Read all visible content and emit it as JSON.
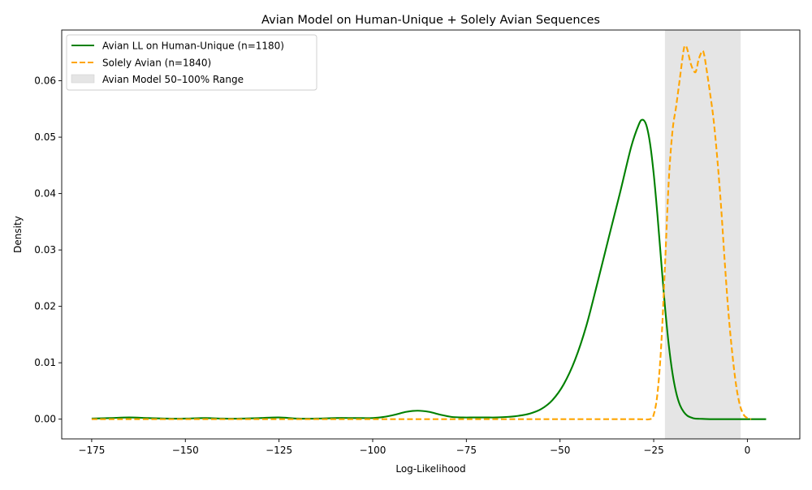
{
  "chart_data": {
    "type": "line",
    "title": "Avian Model on Human-Unique + Solely Avian Sequences",
    "xlabel": "Log-Likelihood",
    "ylabel": "Density",
    "xlim": [
      -183,
      14
    ],
    "ylim": [
      -0.0035,
      0.069
    ],
    "xticks": [
      -175,
      -150,
      -125,
      -100,
      -75,
      -50,
      -25,
      0
    ],
    "yticks": [
      0.0,
      0.01,
      0.02,
      0.03,
      0.04,
      0.05,
      0.06
    ],
    "legend_position": "top-left",
    "shaded_region": {
      "label": "Avian Model 50–100% Range",
      "x_range": [
        -22,
        -1.8
      ],
      "color": "#e5e5e5"
    },
    "series": [
      {
        "name": "Avian LL on Human-Unique (n=1180)",
        "color": "#008000",
        "style": "solid",
        "x": [
          -175,
          -170,
          -165,
          -160,
          -155,
          -150,
          -145,
          -140,
          -135,
          -130,
          -125,
          -120,
          -115,
          -110,
          -105,
          -100,
          -97,
          -94,
          -91,
          -88,
          -85,
          -82,
          -79,
          -76,
          -73,
          -70,
          -67,
          -64,
          -61,
          -58,
          -55,
          -52,
          -49,
          -46,
          -43,
          -40,
          -37,
          -34,
          -31,
          -29,
          -28,
          -27,
          -26,
          -25,
          -24,
          -23,
          -22,
          -21,
          -20,
          -19,
          -18,
          -17,
          -16,
          -15,
          -14,
          -12,
          -10,
          -5,
          0,
          5
        ],
        "y": [
          0.0001,
          0.0002,
          0.0003,
          0.0002,
          0.0001,
          0.0001,
          0.0002,
          0.0001,
          0.0001,
          0.0002,
          0.0003,
          0.0001,
          0.0001,
          0.0002,
          0.0002,
          0.0002,
          0.0004,
          0.0008,
          0.0013,
          0.0015,
          0.0013,
          0.0008,
          0.0004,
          0.0003,
          0.0003,
          0.0003,
          0.0003,
          0.0004,
          0.0006,
          0.001,
          0.0018,
          0.0034,
          0.0062,
          0.0105,
          0.0165,
          0.0242,
          0.0322,
          0.0401,
          0.0483,
          0.0522,
          0.0531,
          0.0522,
          0.049,
          0.0435,
          0.0362,
          0.028,
          0.02,
          0.0133,
          0.0082,
          0.0047,
          0.0025,
          0.0013,
          0.0006,
          0.0003,
          0.0001,
          5e-05,
          0.0,
          0.0,
          0.0,
          0.0
        ]
      },
      {
        "name": "Solely Avian (n=1840)",
        "color": "#ffa500",
        "style": "dashed",
        "x": [
          -175,
          -150,
          -125,
          -100,
          -75,
          -50,
          -30,
          -26,
          -25,
          -24,
          -23,
          -22,
          -21,
          -20,
          -19,
          -18,
          -17,
          -16.5,
          -16,
          -15,
          -14,
          -13.5,
          -13,
          -12,
          -11.5,
          -11,
          -10,
          -9,
          -8,
          -7,
          -6,
          -5,
          -4,
          -3,
          -2,
          -1,
          0,
          1
        ],
        "y": [
          0.0,
          0.0,
          0.0,
          0.0,
          0.0,
          0.0,
          0.0,
          0.0,
          0.0008,
          0.0045,
          0.013,
          0.027,
          0.042,
          0.051,
          0.0555,
          0.0605,
          0.0655,
          0.0662,
          0.0655,
          0.0628,
          0.0615,
          0.0622,
          0.0638,
          0.0653,
          0.0645,
          0.0625,
          0.058,
          0.053,
          0.046,
          0.0375,
          0.0275,
          0.0185,
          0.0115,
          0.006,
          0.0025,
          0.0008,
          0.0002,
          0.0
        ]
      }
    ]
  }
}
